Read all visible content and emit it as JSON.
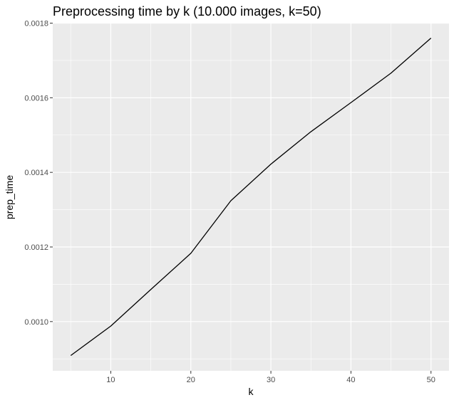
{
  "chart_data": {
    "type": "line",
    "title": "Preprocessing time by k (10.000 images, k=50)",
    "xlabel": "k",
    "ylabel": "prep_time",
    "x": [
      5,
      10,
      15,
      20,
      25,
      30,
      35,
      40,
      45,
      50
    ],
    "series": [
      {
        "values": [
          0.000909,
          0.000988,
          0.001086,
          0.001183,
          0.001324,
          0.001422,
          0.001509,
          0.001587,
          0.001666,
          0.00176
        ]
      }
    ],
    "xlim": [
      2.75,
      52.25
    ],
    "ylim": [
      0.000868,
      0.001801
    ],
    "x_ticks": [
      10,
      20,
      30,
      40,
      50
    ],
    "x_tick_labels": [
      "10",
      "20",
      "30",
      "40",
      "50"
    ],
    "y_ticks": [
      0.001,
      0.0012,
      0.0014,
      0.0016,
      0.0018
    ],
    "y_tick_labels": [
      "0.0010",
      "0.0012",
      "0.0014",
      "0.0016",
      "0.0018"
    ],
    "grid": true,
    "legend": "none",
    "colors": {
      "panel_background": "#ebebeb",
      "grid_major": "#ffffff",
      "line": "#000000",
      "tick_label": "#4d4d4d"
    }
  }
}
